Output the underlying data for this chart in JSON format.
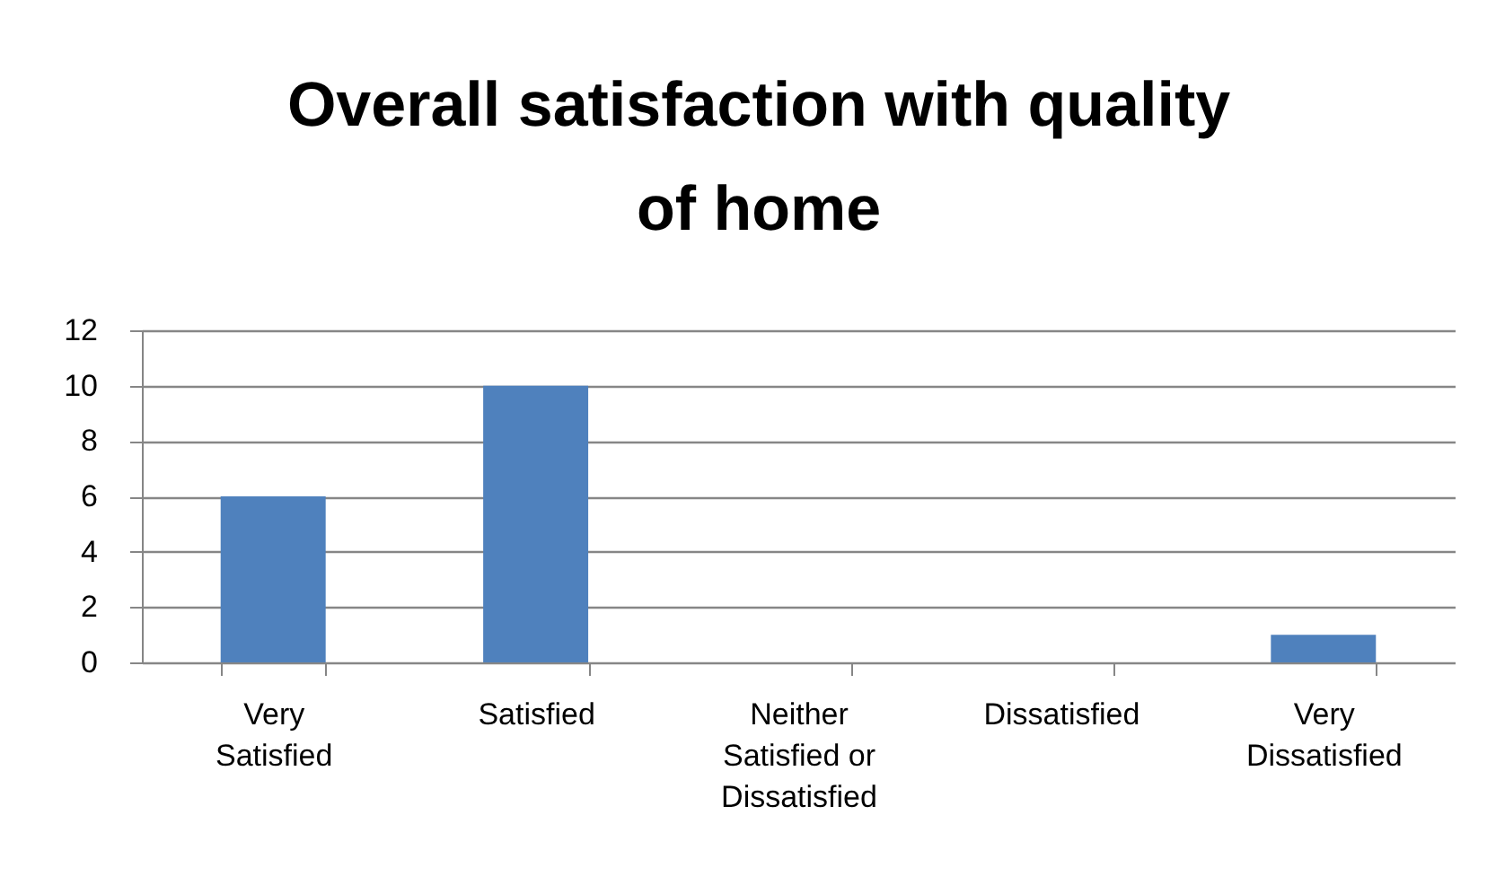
{
  "chart_data": {
    "type": "bar",
    "title": "Overall satisfaction with quality of home",
    "categories": [
      "Very Satisfied",
      "Satisfied",
      "Neither Satisfied or Dissatisfied",
      "Dissatisfied",
      "Very Dissatisfied"
    ],
    "values": [
      6,
      10,
      0,
      0,
      1
    ],
    "color": "#4f81bd",
    "ylim": [
      0,
      12
    ],
    "yticks": [
      0,
      2,
      4,
      6,
      8,
      10,
      12
    ],
    "grid": "y"
  }
}
